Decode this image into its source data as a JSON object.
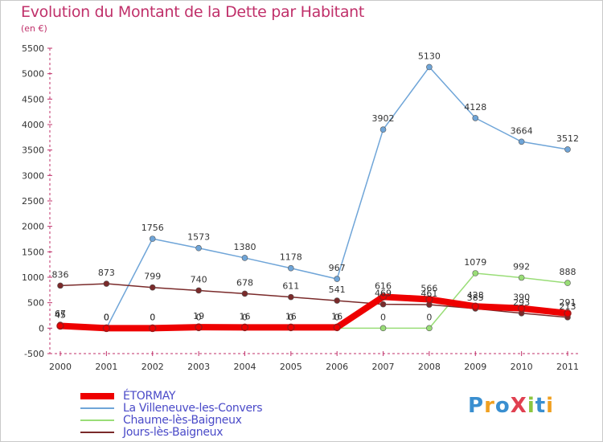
{
  "chart_data": {
    "type": "line",
    "title": "Evolution du Montant de la Dette par Habitant",
    "unit_label": "(en €)",
    "x": [
      "2000",
      "2001",
      "2002",
      "2003",
      "2004",
      "2005",
      "2006",
      "2007",
      "2008",
      "2009",
      "2010",
      "2011"
    ],
    "ylim": [
      -500,
      5500
    ],
    "yticks": [
      -500,
      0,
      500,
      1000,
      1500,
      2000,
      2500,
      3000,
      3500,
      4000,
      4500,
      5000,
      5500
    ],
    "grid": false,
    "legend_position": "bottom-left",
    "series": [
      {
        "name": "ÉTORMAY",
        "color": "#ee0000",
        "values": [
          45,
          0,
          0,
          19,
          16,
          16,
          16,
          616,
          566,
          428,
          390,
          291
        ],
        "labels": [
          "45",
          "0",
          "0",
          "19",
          "16",
          "16",
          "16",
          "616",
          "566",
          "428",
          "390",
          "291"
        ]
      },
      {
        "name": "La Villeneuve-les-Convers",
        "color": "#6fa5d8",
        "values": [
          45,
          0,
          1756,
          1573,
          1380,
          1178,
          967,
          3902,
          5130,
          4128,
          3664,
          3512
        ],
        "labels": [
          "45",
          "0",
          "1756",
          "1573",
          "1380",
          "1178",
          "967",
          "3902",
          "5130",
          "4128",
          "3664",
          "3512"
        ]
      },
      {
        "name": "Chaume-lès-Baigneux",
        "color": "#99dd77",
        "values": [
          67,
          0,
          0,
          0,
          0,
          0,
          0,
          0,
          0,
          1079,
          992,
          888
        ],
        "labels": [
          "67",
          "0",
          "0",
          "0",
          "0",
          "0",
          "0",
          "0",
          "0",
          "1079",
          "992",
          "888"
        ]
      },
      {
        "name": "Jours-lès-Baigneux",
        "color": "#7a2a2a",
        "values": [
          836,
          873,
          799,
          740,
          678,
          611,
          541,
          469,
          461,
          385,
          293,
          213
        ],
        "labels": [
          "836",
          "873",
          "799",
          "740",
          "678",
          "611",
          "541",
          "469",
          "461",
          "385",
          "293",
          "213"
        ]
      }
    ]
  },
  "logo": {
    "text": "ProXiti"
  }
}
